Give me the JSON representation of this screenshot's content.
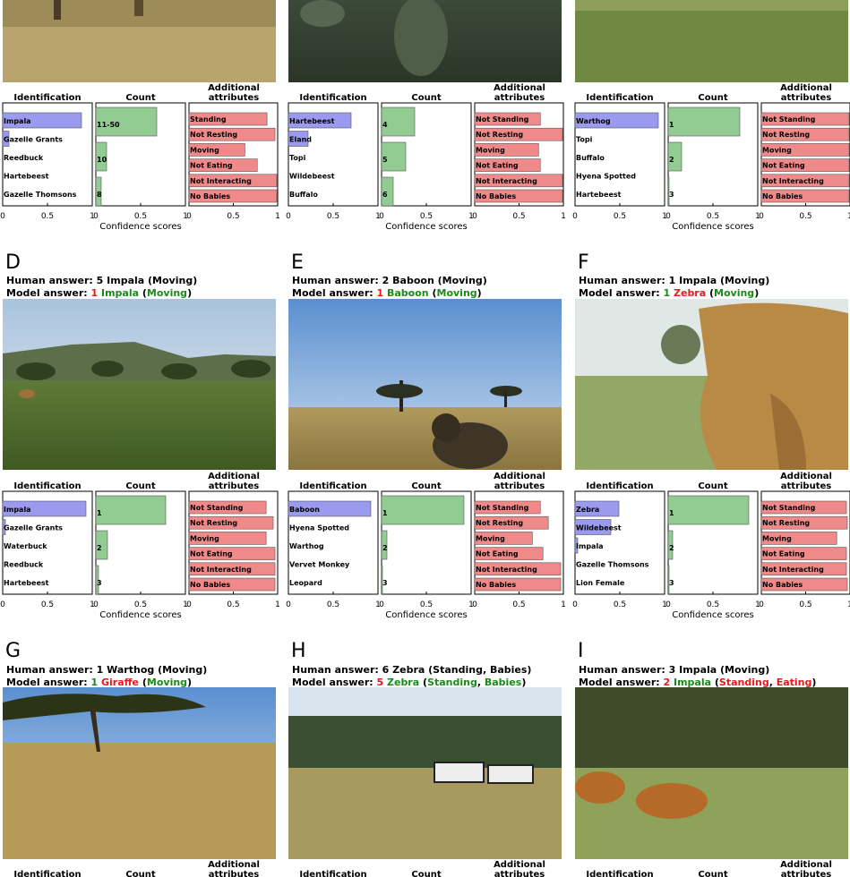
{
  "colors": {
    "identification": "#9a9aee",
    "count": "#92cc92",
    "attributes": "#f08a8a",
    "wrong": "#e31a1c",
    "right": "#1a8a1a"
  },
  "headers": {
    "identification": "Identification",
    "count": "Count",
    "attributes_line1": "Additional",
    "attributes_line2": "attributes",
    "xlabel": "Confidence scores"
  },
  "ticks": [
    "0",
    "0.5",
    "1"
  ],
  "photo_descriptions": {
    "A": "grassland camera-trap photo",
    "B": "dark grass close-up photo",
    "C": "open green grassland photo",
    "D": "green savanna with hills",
    "E": "baboon close to camera under blue sky",
    "F": "zebra body close to camera",
    "G": "dry grass with tree",
    "H": "two zebras in grassland",
    "I": "impalas grazing"
  },
  "chart_data": [
    {
      "panel": "A",
      "type": "bar",
      "identification": {
        "labels": [
          "Impala",
          "Gazelle Grants",
          "Reedbuck",
          "Hartebeest",
          "Gazelle Thomsons"
        ],
        "values": [
          0.88,
          0.07,
          0.0,
          0.0,
          0.0
        ]
      },
      "count": {
        "labels": [
          "11-50",
          "10",
          "8"
        ],
        "values": [
          0.68,
          0.12,
          0.06
        ]
      },
      "attributes": {
        "labels": [
          "Standing",
          "Not Resting",
          "Moving",
          "Not Eating",
          "Not Interacting",
          "No Babies"
        ],
        "values": [
          0.88,
          0.97,
          0.63,
          0.77,
          0.99,
          0.99
        ]
      }
    },
    {
      "panel": "B",
      "type": "bar",
      "identification": {
        "labels": [
          "Hartebeest",
          "Eland",
          "Topi",
          "Wildebeest",
          "Buffalo"
        ],
        "values": [
          0.7,
          0.22,
          0.0,
          0.0,
          0.0
        ]
      },
      "count": {
        "labels": [
          "4",
          "5",
          "6"
        ],
        "values": [
          0.37,
          0.27,
          0.13
        ]
      },
      "attributes": {
        "labels": [
          "Not Standing",
          "Not Resting",
          "Moving",
          "Not Eating",
          "Not Interacting",
          "No Babies"
        ],
        "values": [
          0.74,
          0.99,
          0.72,
          0.74,
          0.99,
          0.99
        ]
      }
    },
    {
      "panel": "C",
      "type": "bar",
      "identification": {
        "labels": [
          "Warthog",
          "Topi",
          "Buffalo",
          "Hyena Spotted",
          "Hartebeest"
        ],
        "values": [
          0.93,
          0.0,
          0.0,
          0.0,
          0.0
        ]
      },
      "count": {
        "labels": [
          "1",
          "2",
          "3"
        ],
        "values": [
          0.8,
          0.15,
          0.01
        ]
      },
      "attributes": {
        "labels": [
          "Not Standing",
          "Not Resting",
          "Moving",
          "Not Eating",
          "Not Interacting",
          "No Babies"
        ],
        "values": [
          0.99,
          0.99,
          0.99,
          0.99,
          0.99,
          0.99
        ]
      }
    },
    {
      "panel": "D",
      "type": "bar",
      "identification": {
        "labels": [
          "Impala",
          "Gazelle Grants",
          "Waterbuck",
          "Reedbuck",
          "Hartebeest"
        ],
        "values": [
          0.93,
          0.03,
          0.0,
          0.0,
          0.0
        ]
      },
      "count": {
        "labels": [
          "1",
          "2",
          "3"
        ],
        "values": [
          0.78,
          0.13,
          0.03
        ]
      },
      "attributes": {
        "labels": [
          "Not Standing",
          "Not Resting",
          "Moving",
          "Not Eating",
          "Not Interacting",
          "No Babies"
        ],
        "values": [
          0.87,
          0.95,
          0.87,
          0.97,
          0.97,
          0.97
        ]
      }
    },
    {
      "panel": "E",
      "type": "bar",
      "identification": {
        "labels": [
          "Baboon",
          "Hyena Spotted",
          "Warthog",
          "Vervet Monkey",
          "Leopard"
        ],
        "values": [
          0.92,
          0.0,
          0.0,
          0.0,
          0.0
        ]
      },
      "count": {
        "labels": [
          "1",
          "2",
          "3"
        ],
        "values": [
          0.92,
          0.06,
          0.01
        ]
      },
      "attributes": {
        "labels": [
          "Not Standing",
          "Not Resting",
          "Moving",
          "Not Eating",
          "Not Interacting",
          "No Babies"
        ],
        "values": [
          0.74,
          0.83,
          0.65,
          0.77,
          0.97,
          0.97
        ]
      }
    },
    {
      "panel": "F",
      "type": "bar",
      "identification": {
        "labels": [
          "Zebra",
          "Wildebeest",
          "Impala",
          "Gazelle Thomsons",
          "Lion Female"
        ],
        "values": [
          0.49,
          0.4,
          0.03,
          0.0,
          0.0
        ]
      },
      "count": {
        "labels": [
          "1",
          "2",
          "3"
        ],
        "values": [
          0.9,
          0.05,
          0.01
        ]
      },
      "attributes": {
        "labels": [
          "Not Standing",
          "Not Resting",
          "Moving",
          "Not Eating",
          "Not Interacting",
          "No Babies"
        ],
        "values": [
          0.96,
          0.97,
          0.85,
          0.96,
          0.96,
          0.97
        ]
      }
    }
  ],
  "panels": [
    {
      "id": "A",
      "letter": "",
      "human": "",
      "model_prefix": "",
      "model_segments": []
    },
    {
      "id": "B",
      "letter": "",
      "human": "",
      "model_prefix": "",
      "model_segments": []
    },
    {
      "id": "C",
      "letter": "",
      "human": "",
      "model_prefix": "",
      "model_segments": []
    },
    {
      "id": "D",
      "letter": "D",
      "human": "Human answer: 5 Impala (Moving)",
      "model_prefix": "Model  answer: ",
      "model_segments": [
        {
          "t": "1",
          "c": "wrong"
        },
        {
          "t": " Impala",
          "c": "right"
        },
        {
          "t": " (",
          "c": "black"
        },
        {
          "t": "Moving",
          "c": "right"
        },
        {
          "t": ")",
          "c": "black"
        }
      ]
    },
    {
      "id": "E",
      "letter": "E",
      "human": "Human answer: 2 Baboon (Moving)",
      "model_prefix": "Model  answer: ",
      "model_segments": [
        {
          "t": "1",
          "c": "wrong"
        },
        {
          "t": " Baboon",
          "c": "right"
        },
        {
          "t": " (",
          "c": "black"
        },
        {
          "t": "Moving",
          "c": "right"
        },
        {
          "t": ")",
          "c": "black"
        }
      ]
    },
    {
      "id": "F",
      "letter": "F",
      "human": "Human answer: 1 Impala (Moving)",
      "model_prefix": "Model  answer: ",
      "model_segments": [
        {
          "t": "1",
          "c": "right"
        },
        {
          "t": " Zebra",
          "c": "wrong"
        },
        {
          "t": " (",
          "c": "black"
        },
        {
          "t": "Moving",
          "c": "right"
        },
        {
          "t": ")",
          "c": "black"
        }
      ]
    },
    {
      "id": "G",
      "letter": "G",
      "human": "Human answer: 1 Warthog (Moving)",
      "model_prefix": "Model  answer: ",
      "model_segments": [
        {
          "t": "1",
          "c": "right"
        },
        {
          "t": " Giraffe",
          "c": "wrong"
        },
        {
          "t": " (",
          "c": "black"
        },
        {
          "t": "Moving",
          "c": "right"
        },
        {
          "t": ")",
          "c": "black"
        }
      ]
    },
    {
      "id": "H",
      "letter": "H",
      "human": "Human answer: 6 Zebra (Standing, Babies)",
      "model_prefix": "Model  answer: ",
      "model_segments": [
        {
          "t": "5",
          "c": "wrong"
        },
        {
          "t": " Zebra",
          "c": "right"
        },
        {
          "t": " (",
          "c": "black"
        },
        {
          "t": "Standing",
          "c": "right"
        },
        {
          "t": ", ",
          "c": "black"
        },
        {
          "t": "Babies",
          "c": "right"
        },
        {
          "t": ")",
          "c": "black"
        }
      ]
    },
    {
      "id": "I",
      "letter": "I",
      "human": "Human answer: 3 Impala (Moving)",
      "model_prefix": "Model  answer: ",
      "model_segments": [
        {
          "t": "2",
          "c": "wrong"
        },
        {
          "t": " Impala",
          "c": "right"
        },
        {
          "t": " (",
          "c": "black"
        },
        {
          "t": "Standing",
          "c": "wrong"
        },
        {
          "t": ", ",
          "c": "black"
        },
        {
          "t": "Eating",
          "c": "wrong"
        },
        {
          "t": ")",
          "c": "black"
        }
      ]
    }
  ]
}
